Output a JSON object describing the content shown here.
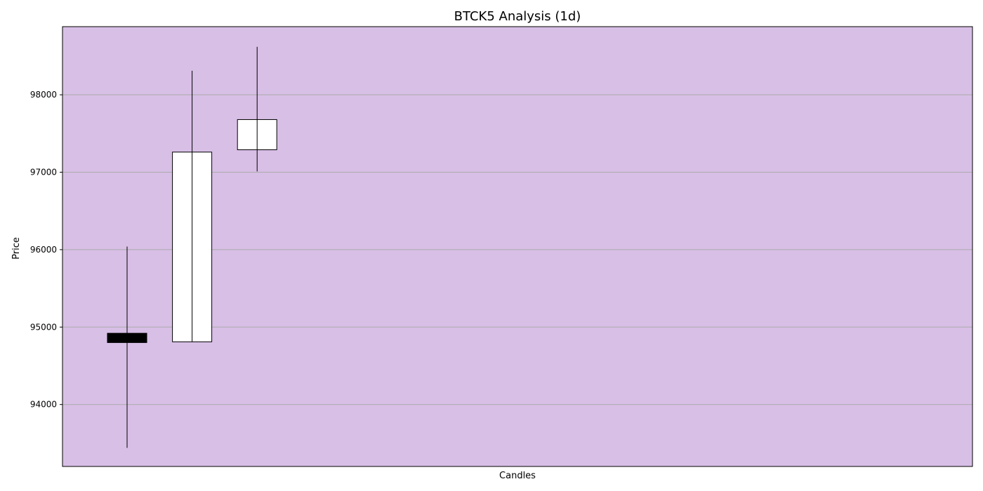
{
  "chart_data": {
    "type": "candlestick",
    "title": "BTCK5 Analysis (1d)",
    "xlabel": "Candles",
    "ylabel": "Price",
    "ylim": [
      93200,
      98880
    ],
    "y_ticks": [
      94000,
      95000,
      96000,
      97000,
      98000
    ],
    "y_tick_labels": [
      "94000",
      "95000",
      "96000",
      "97000",
      "98000"
    ],
    "x_count": 14,
    "grid": {
      "y": true,
      "x": false
    },
    "colors": {
      "plot_background": "#d8bfe6",
      "grid": "#aaaaaa",
      "up_body": "#ffffff",
      "down_body": "#000000",
      "outline": "#000000"
    },
    "candles": [
      {
        "index": 0,
        "open": 94920,
        "high": 96040,
        "low": 93440,
        "close": 94800
      },
      {
        "index": 1,
        "open": 94810,
        "high": 98310,
        "low": 94810,
        "close": 97260
      },
      {
        "index": 2,
        "open": 97290,
        "high": 98620,
        "low": 97010,
        "close": 97680
      }
    ]
  }
}
